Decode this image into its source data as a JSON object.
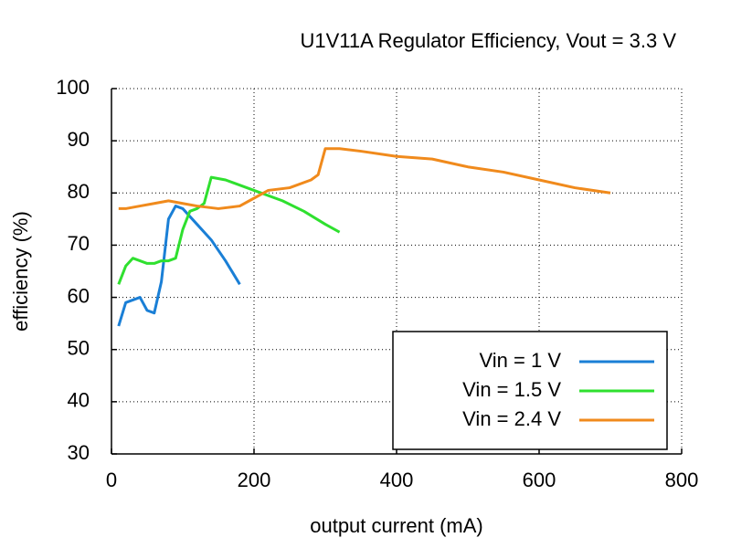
{
  "chart_data": {
    "type": "line",
    "title": "U1V11A Regulator Efficiency, Vout = 3.3 V",
    "x_label": "output current (mA)",
    "y_label": "efficiency (%)",
    "xlim": [
      0,
      800
    ],
    "xticks": [
      0,
      200,
      400,
      600,
      800
    ],
    "ylim": [
      30,
      100
    ],
    "yticks": [
      30,
      40,
      50,
      60,
      70,
      80,
      90,
      100
    ],
    "grid": true,
    "legend": "lower right",
    "series": [
      {
        "name": "Vin = 1 V",
        "color": "#1a7fd6",
        "x": [
          10,
          20,
          30,
          40,
          50,
          60,
          70,
          80,
          90,
          100,
          120,
          140,
          160,
          180
        ],
        "values": [
          54.5,
          59,
          59.5,
          60,
          57.5,
          57,
          63,
          75,
          77.5,
          77,
          74,
          71,
          67,
          62.5
        ]
      },
      {
        "name": "Vin = 1.5 V",
        "color": "#2fe02f",
        "x": [
          10,
          20,
          30,
          40,
          50,
          60,
          70,
          80,
          90,
          100,
          110,
          120,
          130,
          140,
          160,
          200,
          240,
          270,
          300,
          320
        ],
        "values": [
          62.5,
          66,
          67.5,
          67,
          66.5,
          66.5,
          67,
          67,
          67.5,
          73,
          76.5,
          77,
          78,
          83,
          82.5,
          80.5,
          78.5,
          76.5,
          74,
          72.5
        ]
      },
      {
        "name": "Vin = 2.4 V",
        "color": "#f08a1c",
        "x": [
          10,
          20,
          40,
          60,
          80,
          100,
          120,
          150,
          180,
          200,
          220,
          250,
          280,
          290,
          300,
          320,
          350,
          400,
          450,
          500,
          550,
          600,
          650,
          700
        ],
        "values": [
          77,
          77,
          77.5,
          78,
          78.5,
          78,
          77.5,
          77,
          77.5,
          79,
          80.5,
          81,
          82.5,
          83.5,
          88.5,
          88.5,
          88,
          87,
          86.5,
          85,
          84,
          82.5,
          81,
          80
        ]
      }
    ]
  }
}
